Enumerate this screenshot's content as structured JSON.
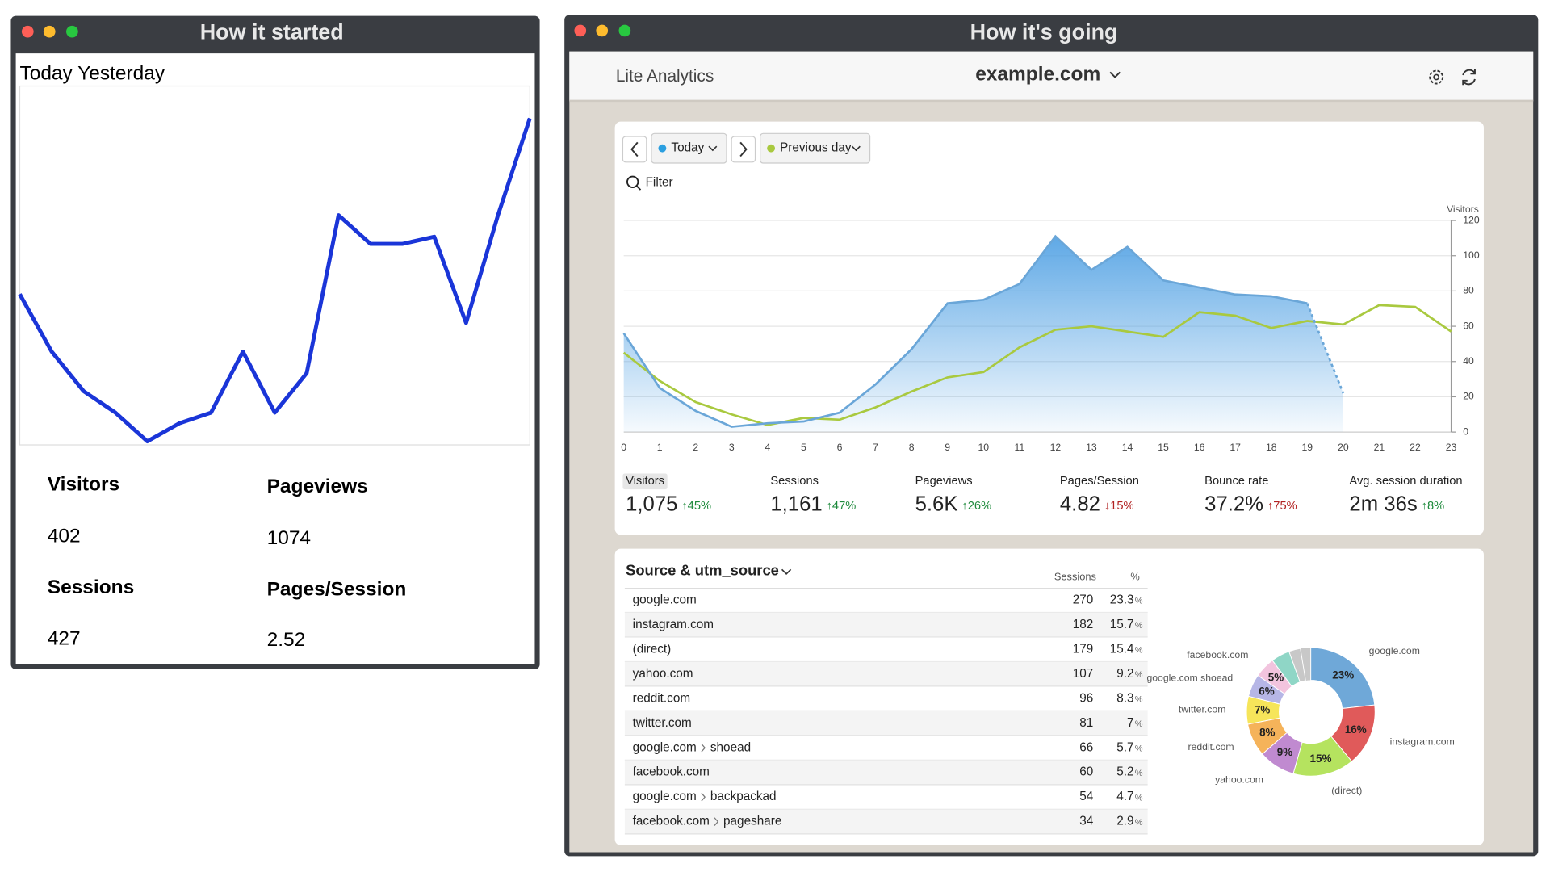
{
  "left_window": {
    "title": "How it started",
    "legend": "Today Yesterday",
    "chart": {
      "type": "line",
      "color": "#1a35d8",
      "ylim": [
        0,
        100
      ],
      "values": [
        42,
        26,
        15,
        9,
        1,
        6,
        9,
        26,
        9,
        20,
        64,
        56,
        56,
        58,
        34,
        64,
        91
      ]
    },
    "stats": [
      {
        "label": "Visitors",
        "value": "402"
      },
      {
        "label": "Pageviews",
        "value": "1074"
      },
      {
        "label": "Sessions",
        "value": "427"
      },
      {
        "label": "Pages/Session",
        "value": "2.52"
      }
    ]
  },
  "right_window": {
    "title": "How it's going",
    "app_name": "Lite Analytics",
    "site": "example.com",
    "controls": {
      "current": "Today",
      "current_color": "#2b9fe0",
      "compare": "Previous day",
      "compare_color": "#a9c93f",
      "filter": "Filter"
    },
    "chart": {
      "type": "area",
      "ylabel": "Visitors",
      "x": [
        0,
        1,
        2,
        3,
        4,
        5,
        6,
        7,
        8,
        9,
        10,
        11,
        12,
        13,
        14,
        15,
        16,
        17,
        18,
        19,
        20,
        21,
        22,
        23
      ],
      "xlim": [
        0,
        23
      ],
      "ylim": [
        0,
        120
      ],
      "yticks": [
        0,
        20,
        40,
        60,
        80,
        100,
        120
      ],
      "grid": true,
      "incomplete_last": true,
      "series": [
        {
          "name": "Today",
          "color": "#6aa6d8",
          "values": [
            56,
            25,
            12,
            3,
            5,
            6,
            11,
            27,
            47,
            73,
            75,
            84,
            111,
            92,
            105,
            86,
            82,
            78,
            77,
            73,
            22,
            null,
            null,
            null
          ]
        },
        {
          "name": "Previous day",
          "color": "#a9c93f",
          "values": [
            45,
            29,
            17,
            10,
            4,
            8,
            7,
            14,
            23,
            31,
            34,
            48,
            58,
            60,
            57,
            54,
            68,
            66,
            59,
            63,
            61,
            72,
            71,
            57
          ]
        }
      ]
    },
    "metrics": [
      {
        "label": "Visitors",
        "value": "1,075",
        "change": "↑45%",
        "trend_color": "#1e8a3c"
      },
      {
        "label": "Sessions",
        "value": "1,161",
        "change": "↑47%",
        "trend_color": "#1e8a3c"
      },
      {
        "label": "Pageviews",
        "value": "5.6K",
        "change": "↑26%",
        "trend_color": "#1e8a3c"
      },
      {
        "label": "Pages/Session",
        "value": "4.82",
        "change": "↓15%",
        "trend_color": "#b22222"
      },
      {
        "label": "Bounce rate",
        "value": "37.2%",
        "change": "↑75%",
        "trend_color": "#b22222"
      },
      {
        "label": "Avg. session duration",
        "value": "2m 36s",
        "change": "↑8%",
        "trend_color": "#1e8a3c"
      }
    ],
    "sources": {
      "title": "Source & utm_source",
      "columns": [
        "Sessions",
        "%"
      ],
      "rows": [
        {
          "name": "google.com",
          "sessions": 270,
          "pct": 23.3
        },
        {
          "name": "instagram.com",
          "sessions": 182,
          "pct": 15.7
        },
        {
          "name": "(direct)",
          "sessions": 179,
          "pct": 15.4
        },
        {
          "name": "yahoo.com",
          "sessions": 107,
          "pct": 9.2
        },
        {
          "name": "reddit.com",
          "sessions": 96,
          "pct": 8.3
        },
        {
          "name": "twitter.com",
          "sessions": 81,
          "pct": 7.0
        },
        {
          "name": "google.com",
          "detail": "shoead",
          "sessions": 66,
          "pct": 5.7
        },
        {
          "name": "facebook.com",
          "sessions": 60,
          "pct": 5.2
        },
        {
          "name": "google.com",
          "detail": "backpackad",
          "sessions": 54,
          "pct": 4.7
        },
        {
          "name": "facebook.com",
          "detail": "pageshare",
          "sessions": 34,
          "pct": 2.9
        }
      ],
      "donut": {
        "type": "pie",
        "categories": [
          "google.com",
          "instagram.com",
          "(direct)",
          "yahoo.com",
          "reddit.com",
          "twitter.com",
          "google.com shoead",
          "facebook.com",
          null,
          null
        ],
        "value_labels": [
          "23%",
          "16%",
          "15%",
          "9%",
          "8%",
          "7%",
          "6%",
          "5%",
          null,
          null
        ],
        "colors": [
          "#6fa8d8",
          "#e05a5a",
          "#b5e35f",
          "#c08ad0",
          "#f5b35a",
          "#f6e55a",
          "#b6b6e6",
          "#f2c4de",
          "#8fd6c6",
          "#c8c8c8"
        ]
      }
    }
  }
}
